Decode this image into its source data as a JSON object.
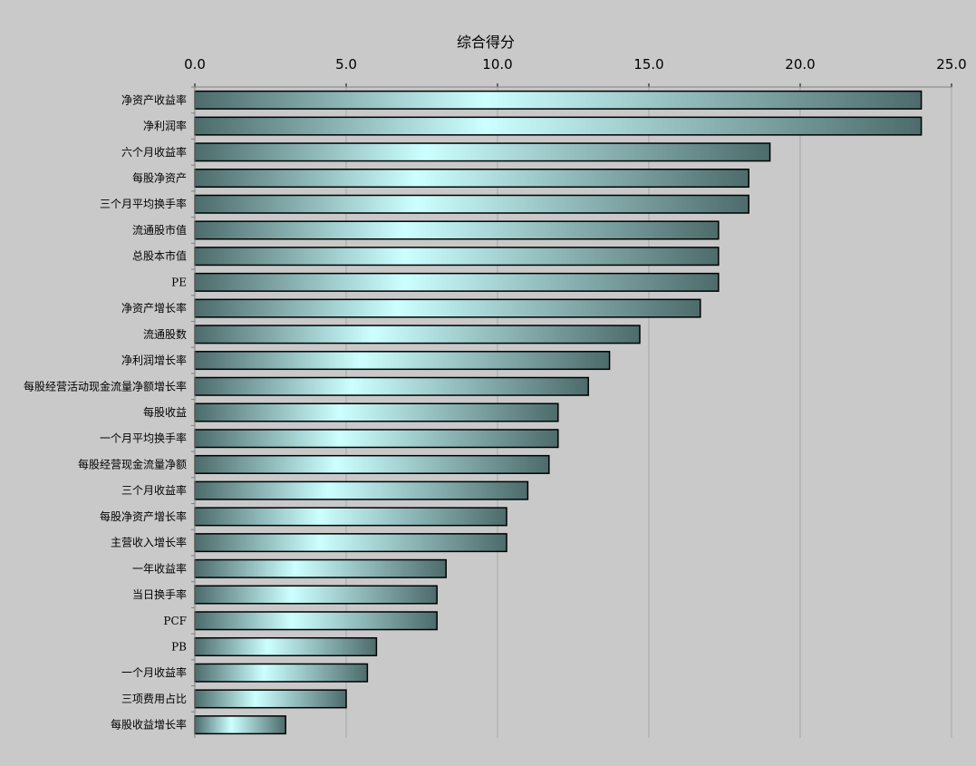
{
  "chart_data": {
    "type": "bar",
    "orientation": "horizontal",
    "title": "",
    "xlabel": "综合得分",
    "ylabel": "",
    "xlim": [
      0,
      25
    ],
    "x_ticks": [
      "0.0",
      "5.0",
      "10.0",
      "15.0",
      "20.0",
      "25.0"
    ],
    "x_axis_position": "top",
    "grid": "vertical",
    "legend": "none",
    "categories": [
      "净资产收益率",
      "净利润率",
      "六个月收益率",
      "每股净资产",
      "三个月平均换手率",
      "流通股市值",
      "总股本市值",
      "PE",
      "净资产增长率",
      "流通股数",
      "净利润增长率",
      "每股经营活动现金流量净额增长率",
      "每股收益",
      "一个月平均换手率",
      "每股经营现金流量净额",
      "三个月收益率",
      "每股净资产增长率",
      "主营收入增长率",
      "一年收益率",
      "当日换手率",
      "PCF",
      "PB",
      "一个月收益率",
      "三项费用占比",
      "每股收益增长率"
    ],
    "values": [
      24.0,
      24.0,
      19.0,
      18.3,
      18.3,
      17.3,
      17.3,
      17.3,
      16.7,
      14.7,
      13.7,
      13.0,
      12.0,
      12.0,
      11.7,
      11.0,
      10.3,
      10.3,
      8.3,
      8.0,
      8.0,
      6.0,
      5.7,
      5.0,
      3.0
    ]
  },
  "colors": {
    "background": "#c9c9c9",
    "bar_edge": "#4d6b6b",
    "bar_center": "#ccffff",
    "bar_outline": "#000000",
    "gridline": "#a8a8a8"
  }
}
